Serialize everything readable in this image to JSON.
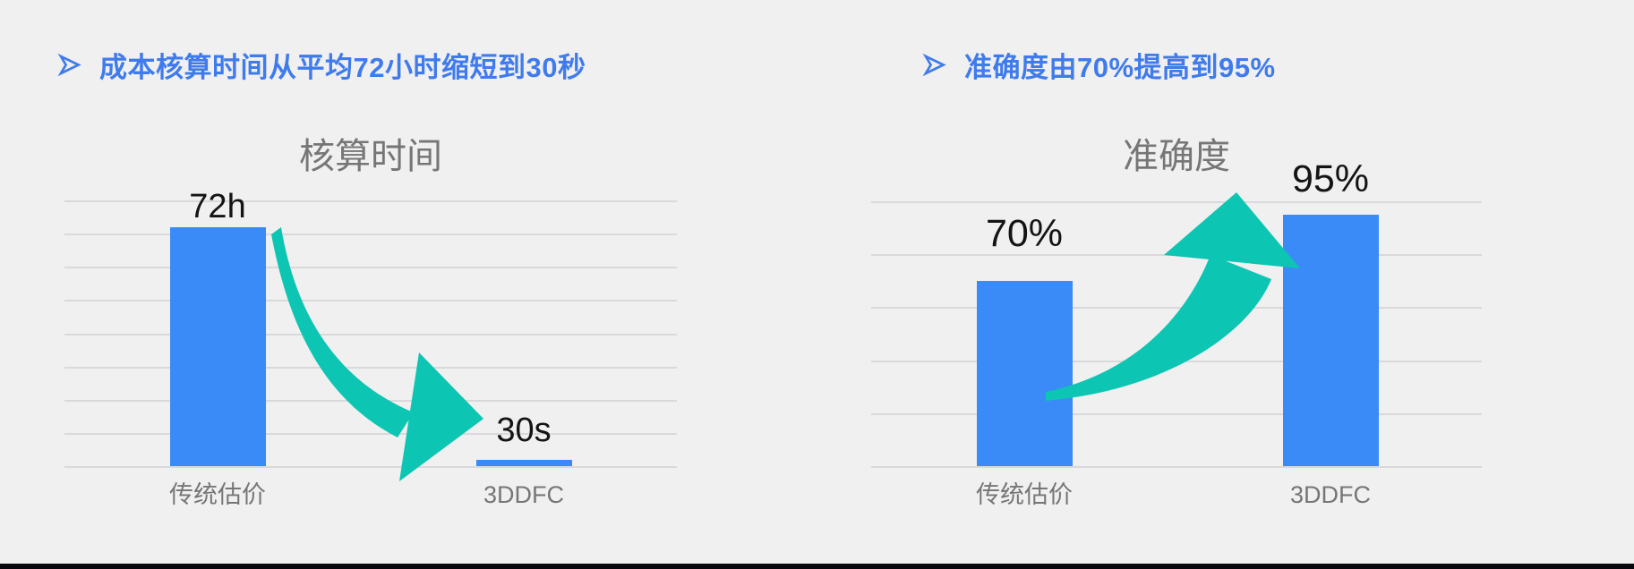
{
  "page": {
    "background": "#F0F0F1"
  },
  "bullets": [
    {
      "marker": "➢",
      "text": "成本核算时间从平均72小时缩短到30秒"
    },
    {
      "marker": "➢",
      "text": "准确度由70%提高到95%"
    }
  ],
  "colors": {
    "bullet_blue": "#3F7BEC",
    "bar_blue": "#3A8AF7",
    "arrow_teal": "#0CC5B2",
    "title_gray": "#767676",
    "axis_label_gray": "#767676",
    "value_label_black": "#141414",
    "gridline_gray": "#D9D9DB",
    "footer_black": "#07070C"
  },
  "chart_data": [
    {
      "type": "bar",
      "title": "核算时间",
      "categories": [
        "传统估价",
        "3DDFC"
      ],
      "values": [
        72,
        0.00833
      ],
      "value_labels": [
        "72h",
        "30s"
      ],
      "unit": "hours",
      "ylim": [
        0,
        80
      ],
      "gridline_count": 9,
      "grid": true,
      "legend": "none",
      "annotation": "decrease-arrow"
    },
    {
      "type": "bar",
      "title": "准确度",
      "categories": [
        "传统估价",
        "3DDFC"
      ],
      "values": [
        70,
        95
      ],
      "value_labels": [
        "70%",
        "95%"
      ],
      "unit": "percent",
      "ylim": [
        0,
        100
      ],
      "gridline_count": 6,
      "grid": true,
      "legend": "none",
      "annotation": "increase-arrow"
    }
  ]
}
